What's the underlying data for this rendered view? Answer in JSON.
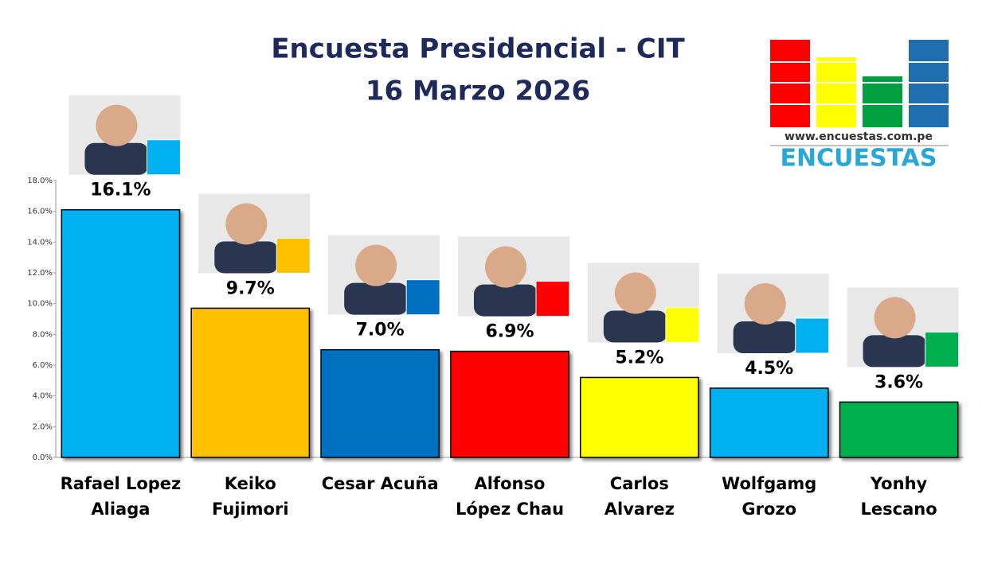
{
  "chart_data": {
    "type": "bar",
    "title": "Encuesta Presidencial - CIT",
    "subtitle": "16 Marzo 2026",
    "logo_url": "www.encuestas.com.pe",
    "logo_name": "ENCUESTAS",
    "categories": [
      "Rafael Lopez Aliaga",
      "Keiko Fujimori",
      "Cesar Acuña",
      "Alfonso López Chau",
      "Carlos Alvarez",
      "Wolfgamg Grozo",
      "Yonhy Lescano"
    ],
    "values": [
      16.1,
      9.7,
      7.0,
      6.9,
      5.2,
      4.5,
      3.6
    ],
    "value_labels": [
      "16.1%",
      "9.7%",
      "7.0%",
      "6.9%",
      "5.2%",
      "4.5%",
      "3.6%"
    ],
    "colors": [
      "#00b0f0",
      "#ffc000",
      "#0070c0",
      "#ff0000",
      "#ffff00",
      "#00b0f0",
      "#00b050"
    ],
    "ylim": [
      0,
      18
    ],
    "yticks": [
      {
        "value": 0,
        "label": "0.0%"
      },
      {
        "value": 2,
        "label": "2.0%"
      },
      {
        "value": 4,
        "label": "4.0%"
      },
      {
        "value": 6,
        "label": "6.0%"
      },
      {
        "value": 8,
        "label": "8.0%"
      },
      {
        "value": 10,
        "label": "10.0%"
      },
      {
        "value": 12,
        "label": "12.0%"
      },
      {
        "value": 14,
        "label": "14.0%"
      },
      {
        "value": 16,
        "label": "16.0%"
      },
      {
        "value": 18,
        "label": "18.0%"
      }
    ],
    "grid": false
  }
}
